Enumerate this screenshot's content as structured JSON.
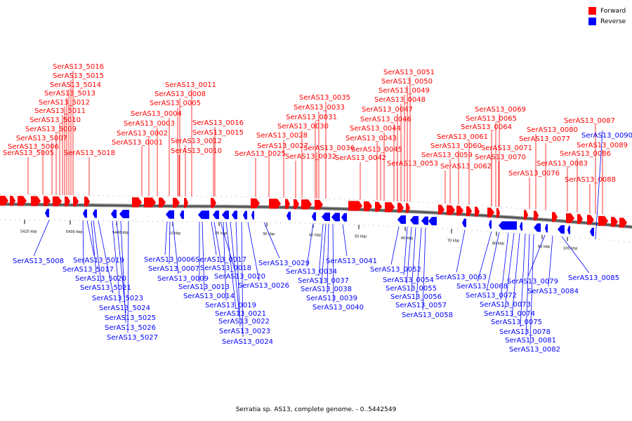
{
  "legend": {
    "forward": {
      "label": "Forward",
      "color": "#ff0000"
    },
    "reverse": {
      "label": "Reverse",
      "color": "#0000ff"
    }
  },
  "caption": "Serratia sp. AS13, complete genome. - 0..5442549",
  "scale_ticks": [
    "5420 kbp",
    "5430 kbp",
    "5440 kbp",
    "10 kbp",
    "20 kbp",
    "30 kbp",
    "40 kbp",
    "50 kbp",
    "60 kbp",
    "70 kbp",
    "80 kbp",
    "90 kbp",
    "100 kbp"
  ],
  "forward_genes": [
    "SerAS13_5016",
    "SerAS13_5015",
    "SerAS13_5014",
    "SerAS13_5013",
    "SerAS13_5012",
    "SerAS13_5011",
    "SerAS13_5010",
    "SerAS13_5009",
    "SerAS13_5007",
    "SerAS13_5006",
    "SerAS13_5005",
    "SerAS13_5018",
    "SerAS13_0011",
    "SerAS13_0008",
    "SerAS13_0005",
    "SerAS13_0004",
    "SerAS13_0003",
    "SerAS13_0002",
    "SerAS13_0001",
    "SerAS13_0016",
    "SerAS13_0015",
    "SerAS13_0012",
    "SerAS13_0010",
    "SerAS13_0035",
    "SerAS13_0033",
    "SerAS13_0031",
    "SerAS13_0030",
    "SerAS13_0028",
    "SerAS13_0027",
    "SerAS13_0025",
    "SerAS13_0036",
    "SerAS13_0032",
    "SerAS13_0051",
    "SerAS13_0050",
    "SerAS13_0049",
    "SerAS13_0048",
    "SerAS13_0047",
    "SerAS13_0046",
    "SerAS13_0044",
    "SerAS13_0043",
    "SerAS13_0045",
    "SerAS13_0042",
    "SerAS13_0053",
    "SerAS13_0069",
    "SerAS13_0065",
    "SerAS13_0064",
    "SerAS13_0061",
    "SerAS13_0060",
    "SerAS13_0059",
    "SerAS13_0062",
    "SerAS13_0071",
    "SerAS13_0070",
    "SerAS13_0080",
    "SerAS13_0077",
    "SerAS13_0076",
    "SerAS13_0087",
    "SerAS13_0086",
    "SerAS13_0083",
    "SerAS13_0089",
    "SerAS13_0088"
  ],
  "reverse_genes": [
    "SerAS13_0090",
    "SerAS13_5008",
    "SerAS13_5019",
    "SerAS13_5017",
    "SerAS13_5020",
    "SerAS13_5021",
    "SerAS13_5023",
    "SerAS13_5024",
    "SerAS13_5025",
    "SerAS13_5026",
    "SerAS13_5027",
    "SerAS13_0006",
    "SerAS13_0007",
    "SerAS13_0009",
    "SerAS13_0013",
    "SerAS13_0014",
    "SerAS13_0017",
    "SerAS13_0018",
    "SerAS13_0020",
    "SerAS13_0019",
    "SerAS13_0021",
    "SerAS13_0022",
    "SerAS13_0023",
    "SerAS13_0024",
    "SerAS13_0026",
    "SerAS13_0029",
    "SerAS13_0034",
    "SerAS13_0037",
    "SerAS13_0038",
    "SerAS13_0039",
    "SerAS13_0040",
    "SerAS13_0041",
    "SerAS13_0052",
    "SerAS13_0054",
    "SerAS13_0055",
    "SerAS13_0056",
    "SerAS13_0057",
    "SerAS13_0058",
    "SerAS13_0063",
    "SerAS13_0068",
    "SerAS13_0072",
    "SerAS13_0073",
    "SerAS13_0074",
    "SerAS13_0075",
    "SerAS13_0078",
    "SerAS13_0081",
    "SerAS13_0082",
    "SerAS13_0079",
    "SerAS13_0084",
    "SerAS13_0085"
  ]
}
